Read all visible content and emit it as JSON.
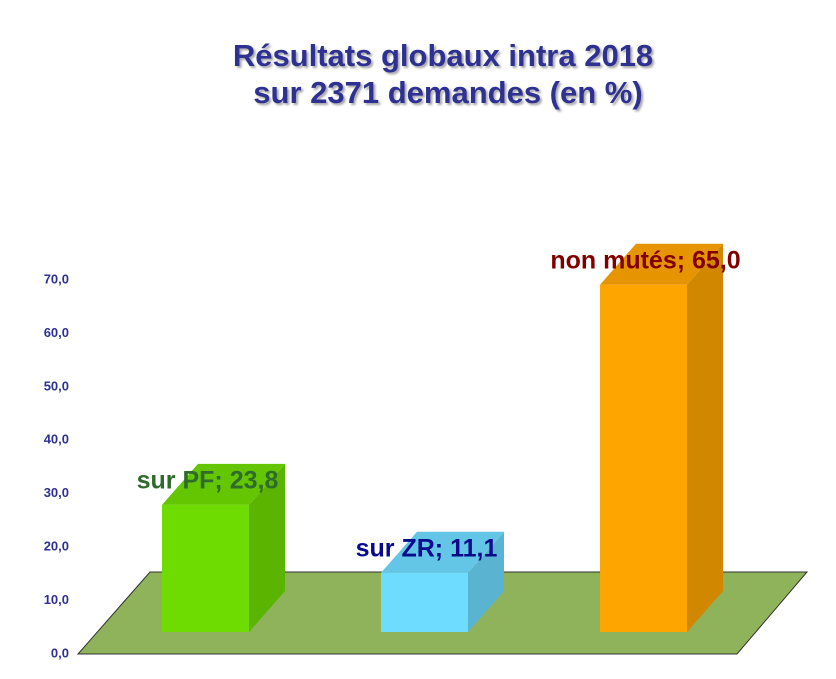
{
  "chart_data": {
    "type": "bar3d",
    "title": [
      "Résultats globaux intra 2018",
      "sur 2371 demandes (en %)"
    ],
    "values": [
      23.8,
      11.1,
      65.0
    ],
    "value_labels": [
      "sur PF; 23,8",
      "sur ZR; 11,1",
      "non mutés; 65,0"
    ],
    "colors": [
      "#6edc00",
      "#6edcff",
      "#ffa500"
    ],
    "label_colors": [
      "#2f6b2a",
      "#0a0a8c",
      "#800000"
    ],
    "floor_color": "#8fb35a",
    "ylim": [
      0,
      70
    ],
    "yticks": [
      {
        "value": 0,
        "label": "0,0"
      },
      {
        "value": 10,
        "label": "10,0"
      },
      {
        "value": 20,
        "label": "20,0"
      },
      {
        "value": 30,
        "label": "30,0"
      },
      {
        "value": 40,
        "label": "40,0"
      },
      {
        "value": 50,
        "label": "50,0"
      },
      {
        "value": 60,
        "label": "60,0"
      },
      {
        "value": 70,
        "label": "70,0"
      }
    ]
  }
}
